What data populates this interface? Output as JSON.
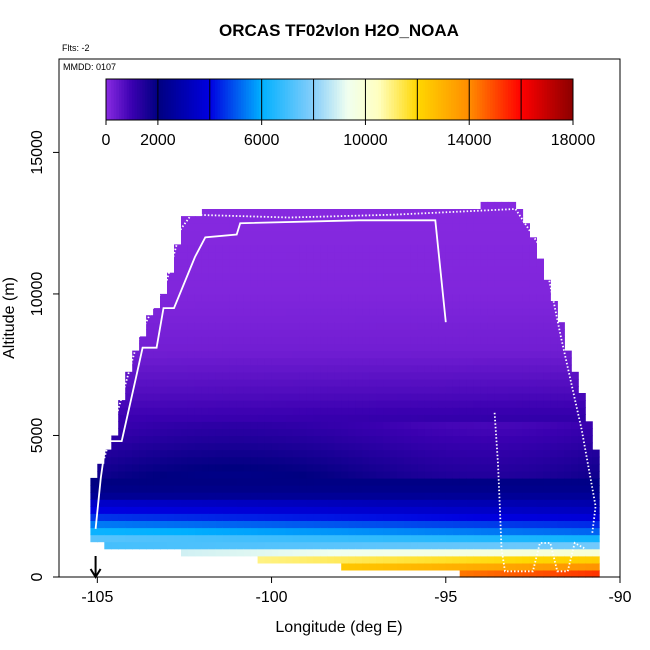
{
  "chart_data": {
    "type": "heatmap",
    "title": "ORCAS TF02vlon H2O_NOAA",
    "flights_note": "Flts: -2",
    "date_note": "MMDD: 0107",
    "xlabel": "Longitude (deg E)",
    "ylabel": "Altitude (m)",
    "xlim": [
      -106.2,
      -90
    ],
    "ylim": [
      0,
      18500
    ],
    "xticks": [
      "-105",
      "-100",
      "-95",
      "-90"
    ],
    "xtick_values": [
      -105,
      -100,
      -95,
      -90
    ],
    "yticks": [
      "0",
      "5000",
      "10000",
      "15000"
    ],
    "ytick_values": [
      0,
      5000,
      10000,
      15000
    ],
    "grid": false,
    "colorbar": {
      "placement": "top",
      "range": [
        0,
        18000
      ],
      "tick_labels": [
        "0",
        "2000",
        "6000",
        "10000",
        "14000",
        "18000"
      ],
      "tick_values": [
        0,
        2000,
        6000,
        10000,
        14000,
        18000
      ],
      "divider_values": [
        2000,
        4000,
        6000,
        8000,
        10000,
        12000,
        14000,
        16000
      ],
      "stops": [
        {
          "v": 0,
          "c": "#8a2be2"
        },
        {
          "v": 1000,
          "c": "#3a00b0"
        },
        {
          "v": 2000,
          "c": "#000080"
        },
        {
          "v": 4000,
          "c": "#0000e0"
        },
        {
          "v": 6000,
          "c": "#00b0ff"
        },
        {
          "v": 8000,
          "c": "#87cefa"
        },
        {
          "v": 9300,
          "c": "#f0fff0"
        },
        {
          "v": 10500,
          "c": "#ffffc0"
        },
        {
          "v": 12000,
          "c": "#ffd700"
        },
        {
          "v": 14000,
          "c": "#ff8c00"
        },
        {
          "v": 16000,
          "c": "#ff0000"
        },
        {
          "v": 18000,
          "c": "#8b0000"
        }
      ]
    },
    "envelope": {
      "lon": [
        -105.2,
        -105.0,
        -104.5,
        -104.0,
        -103.5,
        -103.0,
        -102.5,
        -101.5,
        -100.0,
        -98.0,
        -96.0,
        -94.0,
        -93.0,
        -92.5,
        -92.0,
        -91.5,
        -91.0,
        -90.6
      ],
      "top_alt": [
        3200,
        3600,
        5000,
        7500,
        9000,
        10200,
        12700,
        12800,
        12900,
        12900,
        12900,
        13000,
        13100,
        12000,
        10000,
        8000,
        6000,
        4000
      ],
      "bottom_alt": [
        1500,
        1300,
        1200,
        1150,
        1100,
        1050,
        1000,
        900,
        700,
        500,
        350,
        200,
        50,
        0,
        0,
        0,
        0,
        0
      ]
    },
    "water_vapor_profile": {
      "altitude_m": [
        0,
        600,
        1200,
        1600,
        2200,
        3000,
        4000,
        5000,
        6500,
        8000,
        10000,
        13000
      ],
      "h2o_west": [
        12000,
        10500,
        6500,
        5000,
        3500,
        2200,
        1700,
        1200,
        700,
        300,
        120,
        50
      ],
      "h2o_east": [
        16000,
        12500,
        7000,
        5200,
        3600,
        2300,
        1900,
        1400,
        800,
        320,
        130,
        50
      ]
    },
    "flight_track": [
      {
        "lon": -105.05,
        "alt": 1700
      },
      {
        "lon": -104.9,
        "alt": 3500
      },
      {
        "lon": -104.75,
        "alt": 4800
      },
      {
        "lon": -104.3,
        "alt": 4800
      },
      {
        "lon": -103.9,
        "alt": 7000
      },
      {
        "lon": -103.7,
        "alt": 8100
      },
      {
        "lon": -103.3,
        "alt": 8100
      },
      {
        "lon": -103.1,
        "alt": 9500
      },
      {
        "lon": -102.8,
        "alt": 9500
      },
      {
        "lon": -102.2,
        "alt": 11300
      },
      {
        "lon": -101.9,
        "alt": 12000
      },
      {
        "lon": -101.0,
        "alt": 12100
      },
      {
        "lon": -100.9,
        "alt": 12500
      },
      {
        "lon": -97.5,
        "alt": 12600
      },
      {
        "lon": -95.3,
        "alt": 12600
      },
      {
        "lon": -95.0,
        "alt": 9000
      }
    ],
    "flight_track_2": [
      {
        "lon": -104.8,
        "alt": 4200
      },
      {
        "lon": -103.8,
        "alt": 8500
      },
      {
        "lon": -103.0,
        "alt": 10500
      },
      {
        "lon": -102.6,
        "alt": 12300
      },
      {
        "lon": -102.3,
        "alt": 12800
      },
      {
        "lon": -99.5,
        "alt": 12700
      },
      {
        "lon": -96.5,
        "alt": 12800
      },
      {
        "lon": -93.0,
        "alt": 13000
      },
      {
        "lon": -92.2,
        "alt": 11500
      },
      {
        "lon": -91.7,
        "alt": 8500
      },
      {
        "lon": -91.1,
        "alt": 5200
      },
      {
        "lon": -90.7,
        "alt": 2500
      },
      {
        "lon": -90.8,
        "alt": 1500
      }
    ],
    "flight_track_3": [
      {
        "lon": -93.6,
        "alt": 5800
      },
      {
        "lon": -93.5,
        "alt": 4000
      },
      {
        "lon": -93.45,
        "alt": 2500
      },
      {
        "lon": -93.4,
        "alt": 1000
      },
      {
        "lon": -93.3,
        "alt": 200
      },
      {
        "lon": -92.5,
        "alt": 200
      },
      {
        "lon": -92.3,
        "alt": 1200
      },
      {
        "lon": -92.0,
        "alt": 1200
      },
      {
        "lon": -91.8,
        "alt": 200
      },
      {
        "lon": -91.5,
        "alt": 200
      },
      {
        "lon": -91.3,
        "alt": 1200
      },
      {
        "lon": -91.0,
        "alt": 1000
      }
    ],
    "marker_arrow": {
      "lon": -105.05
    }
  }
}
